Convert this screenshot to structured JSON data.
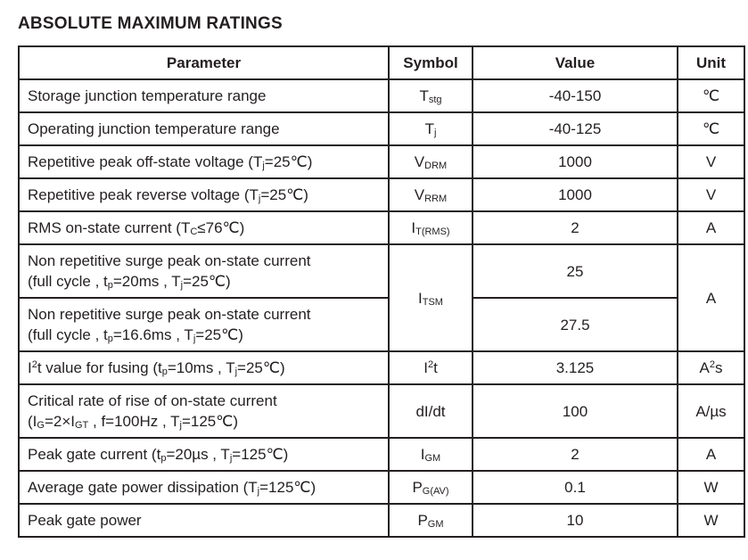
{
  "page": {
    "title": "ABSOLUTE MAXIMUM RATINGS"
  },
  "table": {
    "headers": [
      "Parameter",
      "Symbol",
      "Value",
      "Unit"
    ],
    "rows": [
      {
        "parameter": [
          {
            "t": "Storage junction temperature range"
          }
        ],
        "symbol": [
          {
            "t": "T"
          },
          {
            "sub": "stg"
          }
        ],
        "value": [
          {
            "t": "-40-150"
          }
        ],
        "unit": [
          {
            "t": "℃"
          }
        ]
      },
      {
        "parameter": [
          {
            "t": "Operating junction temperature range"
          }
        ],
        "symbol": [
          {
            "t": "T"
          },
          {
            "sub": "j"
          }
        ],
        "value": [
          {
            "t": "-40-125"
          }
        ],
        "unit": [
          {
            "t": "℃"
          }
        ]
      },
      {
        "parameter": [
          {
            "t": "Repetitive peak off-state voltage (T"
          },
          {
            "sub": "j"
          },
          {
            "t": "=25℃)"
          }
        ],
        "symbol": [
          {
            "t": "V"
          },
          {
            "sub": "DRM"
          }
        ],
        "value": [
          {
            "t": "1000"
          }
        ],
        "unit": [
          {
            "t": "V"
          }
        ]
      },
      {
        "parameter": [
          {
            "t": "Repetitive peak reverse voltage (T"
          },
          {
            "sub": "j"
          },
          {
            "t": "=25℃)"
          }
        ],
        "symbol": [
          {
            "t": "V"
          },
          {
            "sub": "RRM"
          }
        ],
        "value": [
          {
            "t": "1000"
          }
        ],
        "unit": [
          {
            "t": "V"
          }
        ]
      },
      {
        "parameter": [
          {
            "t": "RMS on-state current (T"
          },
          {
            "sub": "C"
          },
          {
            "t": "≤76℃)"
          }
        ],
        "symbol": [
          {
            "t": "I"
          },
          {
            "sub": "T(RMS)"
          }
        ],
        "value": [
          {
            "t": "2"
          }
        ],
        "unit": [
          {
            "t": "A"
          }
        ]
      },
      {
        "parameter": [
          {
            "t": "Non repetitive surge peak on-state current"
          },
          {
            "br": true
          },
          {
            "t": "(full cycle , t"
          },
          {
            "sub": "p"
          },
          {
            "t": "=20ms , T"
          },
          {
            "sub": "j"
          },
          {
            "t": "=25℃)"
          }
        ],
        "symbol": [
          {
            "t": "I"
          },
          {
            "sub": "TSM"
          }
        ],
        "symbol_rowspan": 2,
        "value": [
          {
            "t": "25"
          }
        ],
        "unit": [
          {
            "t": "A"
          }
        ],
        "unit_rowspan": 2
      },
      {
        "parameter": [
          {
            "t": "Non repetitive surge peak on-state current"
          },
          {
            "br": true
          },
          {
            "t": "(full cycle , t"
          },
          {
            "sub": "p"
          },
          {
            "t": "=16.6ms , T"
          },
          {
            "sub": "j"
          },
          {
            "t": "=25℃)"
          }
        ],
        "symbol": null,
        "value": [
          {
            "t": "27.5"
          }
        ],
        "unit": null
      },
      {
        "parameter": [
          {
            "t": "I"
          },
          {
            "sup": "2"
          },
          {
            "t": "t value for fusing (t"
          },
          {
            "sub": "p"
          },
          {
            "t": "=10ms , T"
          },
          {
            "sub": "j"
          },
          {
            "t": "=25℃)"
          }
        ],
        "symbol": [
          {
            "t": "I"
          },
          {
            "sup": "2"
          },
          {
            "t": "t"
          }
        ],
        "value": [
          {
            "t": "3.125"
          }
        ],
        "unit": [
          {
            "t": "A"
          },
          {
            "sup": "2"
          },
          {
            "t": "s"
          }
        ]
      },
      {
        "parameter": [
          {
            "t": "Critical rate of rise of on-state current"
          },
          {
            "br": true
          },
          {
            "t": "(I"
          },
          {
            "sub": "G"
          },
          {
            "t": "=2×I"
          },
          {
            "sub": "GT"
          },
          {
            "t": " , f=100Hz , T"
          },
          {
            "sub": "j"
          },
          {
            "t": "=125℃)"
          }
        ],
        "symbol": [
          {
            "t": "dI/dt"
          }
        ],
        "value": [
          {
            "t": "100"
          }
        ],
        "unit": [
          {
            "t": "A/µs"
          }
        ]
      },
      {
        "parameter": [
          {
            "t": "Peak gate current (t"
          },
          {
            "sub": "p"
          },
          {
            "t": "=20µs , T"
          },
          {
            "sub": "j"
          },
          {
            "t": "=125℃)"
          }
        ],
        "symbol": [
          {
            "t": "I"
          },
          {
            "sub": "GM"
          }
        ],
        "value": [
          {
            "t": "2"
          }
        ],
        "unit": [
          {
            "t": "A"
          }
        ]
      },
      {
        "parameter": [
          {
            "t": "Average gate power dissipation (T"
          },
          {
            "sub": "j"
          },
          {
            "t": "=125℃)"
          }
        ],
        "symbol": [
          {
            "t": "P"
          },
          {
            "sub": "G(AV)"
          }
        ],
        "value": [
          {
            "t": "0.1"
          }
        ],
        "unit": [
          {
            "t": "W"
          }
        ]
      },
      {
        "parameter": [
          {
            "t": "Peak gate power"
          }
        ],
        "symbol": [
          {
            "t": "P"
          },
          {
            "sub": "GM"
          }
        ],
        "value": [
          {
            "t": "10"
          }
        ],
        "unit": [
          {
            "t": "W"
          }
        ]
      }
    ]
  }
}
